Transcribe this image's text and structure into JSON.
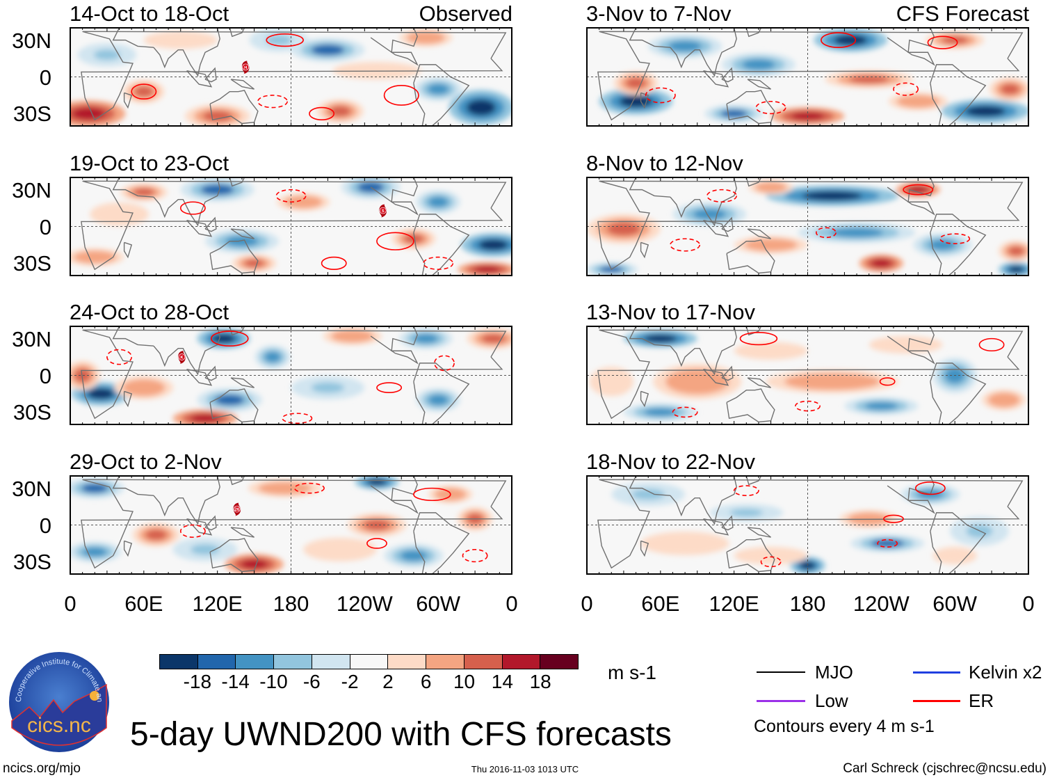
{
  "title": "5-day UWND200 with CFS forecasts",
  "footer": {
    "url": "ncics.org/mjo",
    "timestamp": "Thu 2016-11-03 1013 UTC",
    "author": "Carl Schreck (cjschrec@ncsu.edu)"
  },
  "logo": {
    "ring_text": "Cooperative Institute for Climate and Satellites",
    "name": "cics.nc"
  },
  "colorbar": {
    "unit": "m s-1",
    "ticks": [
      "-18",
      "-14",
      "-10",
      "-6",
      "-2",
      "2",
      "6",
      "10",
      "14",
      "18"
    ],
    "colors": [
      "#0b3669",
      "#2166ac",
      "#4393c3",
      "#92c5de",
      "#d1e5f0",
      "#f7f7f7",
      "#fddbc7",
      "#f4a582",
      "#d6604d",
      "#b2182b",
      "#67001f"
    ]
  },
  "legend": {
    "items": [
      {
        "label": "MJO",
        "color": "#000000"
      },
      {
        "label": "Kelvin x2",
        "color": "#1f3fe0"
      },
      {
        "label": "Low",
        "color": "#9b30e8"
      },
      {
        "label": "ER",
        "color": "#ff0000"
      }
    ],
    "note": "Contours every 4 m s-1"
  },
  "axes": {
    "lat_labels": [
      "30N",
      "0",
      "30S"
    ],
    "lon_labels": [
      "0",
      "60E",
      "120E",
      "180",
      "120W",
      "60W",
      "0"
    ]
  },
  "chart_data": {
    "type": "heatmap",
    "variable": "200-hPa zonal wind anomaly (m s-1), 5-day means",
    "x_range_deg_east": [
      0,
      360
    ],
    "y_range_deg_lat": [
      -40,
      40
    ],
    "panels": [
      {
        "title": "14-Oct to 18-Oct",
        "label": "Observed",
        "col": 0,
        "row": 0,
        "storm": {
          "label": "H",
          "lon": 143,
          "lat": 8
        },
        "anomalies": [
          [
            15,
            -30,
            18,
            25,
            9
          ],
          [
            60,
            -12,
            14,
            14,
            8
          ],
          [
            120,
            -32,
            14,
            22,
            8
          ],
          [
            220,
            -28,
            14,
            16,
            8
          ],
          [
            335,
            -25,
            -18,
            22,
            12
          ],
          [
            210,
            22,
            -14,
            25,
            8
          ],
          [
            290,
            32,
            10,
            18,
            6
          ],
          [
            30,
            18,
            -6,
            20,
            8
          ],
          [
            300,
            -10,
            -10,
            16,
            8
          ],
          [
            170,
            30,
            -6,
            20,
            8
          ],
          [
            90,
            30,
            6,
            25,
            6
          ],
          [
            250,
            5,
            6,
            30,
            6
          ]
        ],
        "er_contours": [
          [
            175,
            30,
            15,
            5,
            0
          ],
          [
            165,
            -20,
            12,
            5,
            1
          ],
          [
            270,
            -15,
            14,
            8,
            0
          ],
          [
            60,
            -12,
            10,
            6,
            0
          ],
          [
            205,
            -30,
            10,
            5,
            0
          ]
        ]
      },
      {
        "title": "19-Oct to 23-Oct",
        "label": "",
        "col": 0,
        "row": 1,
        "storm": {
          "label": "S",
          "lon": 255,
          "lat": 13
        },
        "anomalies": [
          [
            60,
            28,
            14,
            16,
            6
          ],
          [
            120,
            30,
            -14,
            25,
            8
          ],
          [
            245,
            32,
            -14,
            20,
            8
          ],
          [
            280,
            -10,
            14,
            15,
            7
          ],
          [
            345,
            -15,
            -18,
            22,
            8
          ],
          [
            340,
            -35,
            18,
            20,
            5
          ],
          [
            140,
            -12,
            -10,
            25,
            8
          ],
          [
            150,
            -30,
            14,
            15,
            6
          ],
          [
            20,
            -25,
            10,
            20,
            6
          ],
          [
            190,
            20,
            10,
            18,
            6
          ],
          [
            300,
            20,
            -10,
            15,
            8
          ],
          [
            40,
            10,
            6,
            20,
            8
          ]
        ],
        "er_contours": [
          [
            180,
            25,
            12,
            5,
            1
          ],
          [
            265,
            -12,
            15,
            7,
            0
          ],
          [
            300,
            -30,
            12,
            5,
            1
          ],
          [
            100,
            15,
            10,
            5,
            0
          ],
          [
            215,
            -30,
            10,
            5,
            0
          ]
        ]
      },
      {
        "title": "24-Oct to 28-Oct",
        "label": "",
        "col": 0,
        "row": 2,
        "storm": {
          "label": "K",
          "lon": 91,
          "lat": 15
        },
        "anomalies": [
          [
            125,
            30,
            -18,
            18,
            7
          ],
          [
            25,
            -15,
            -18,
            20,
            8
          ],
          [
            130,
            -20,
            -14,
            22,
            8
          ],
          [
            110,
            -35,
            18,
            22,
            6
          ],
          [
            10,
            0,
            14,
            12,
            10
          ],
          [
            345,
            30,
            14,
            18,
            7
          ],
          [
            230,
            32,
            10,
            20,
            6
          ],
          [
            290,
            30,
            -10,
            18,
            7
          ],
          [
            300,
            -20,
            -10,
            15,
            8
          ],
          [
            210,
            -10,
            -6,
            25,
            8
          ],
          [
            165,
            15,
            -10,
            12,
            8
          ],
          [
            60,
            -10,
            10,
            20,
            8
          ]
        ],
        "er_contours": [
          [
            130,
            30,
            15,
            6,
            0
          ],
          [
            260,
            -10,
            10,
            4,
            0
          ],
          [
            185,
            -35,
            12,
            4,
            1
          ],
          [
            305,
            10,
            8,
            6,
            1
          ],
          [
            40,
            15,
            10,
            6,
            1
          ]
        ]
      },
      {
        "title": "29-Oct to 2-Nov",
        "label": "",
        "col": 0,
        "row": 3,
        "storm": {
          "label": "26",
          "lon": 136,
          "lat": 13
        },
        "anomalies": [
          [
            150,
            -32,
            18,
            20,
            7
          ],
          [
            70,
            -8,
            14,
            16,
            8
          ],
          [
            250,
            0,
            14,
            20,
            8
          ],
          [
            20,
            30,
            -14,
            20,
            7
          ],
          [
            250,
            35,
            -18,
            15,
            5
          ],
          [
            175,
            30,
            10,
            25,
            6
          ],
          [
            330,
            5,
            14,
            12,
            8
          ],
          [
            280,
            -25,
            -10,
            20,
            8
          ],
          [
            20,
            -22,
            -10,
            18,
            7
          ],
          [
            310,
            25,
            10,
            15,
            6
          ],
          [
            110,
            -20,
            -6,
            22,
            8
          ],
          [
            220,
            -20,
            6,
            25,
            8
          ]
        ],
        "er_contours": [
          [
            195,
            30,
            12,
            4,
            1
          ],
          [
            295,
            25,
            15,
            5,
            0
          ],
          [
            250,
            -15,
            8,
            4,
            0
          ],
          [
            100,
            -5,
            10,
            5,
            1
          ],
          [
            330,
            -25,
            10,
            5,
            1
          ]
        ]
      },
      {
        "title": "3-Nov to 7-Nov",
        "label": "CFS Forecast",
        "col": 1,
        "row": 0,
        "storm": null,
        "anomalies": [
          [
            215,
            30,
            -18,
            25,
            8
          ],
          [
            40,
            -20,
            -18,
            25,
            9
          ],
          [
            120,
            -30,
            -14,
            20,
            6
          ],
          [
            325,
            -28,
            -18,
            30,
            8
          ],
          [
            40,
            -5,
            14,
            15,
            8
          ],
          [
            180,
            -32,
            18,
            25,
            6
          ],
          [
            230,
            -2,
            14,
            30,
            6
          ],
          [
            345,
            -10,
            14,
            14,
            8
          ],
          [
            300,
            30,
            14,
            20,
            6
          ],
          [
            80,
            25,
            -10,
            25,
            8
          ],
          [
            140,
            10,
            -10,
            25,
            8
          ],
          [
            270,
            -20,
            10,
            20,
            6
          ]
        ],
        "er_contours": [
          [
            205,
            30,
            14,
            6,
            0
          ],
          [
            290,
            28,
            12,
            5,
            0
          ],
          [
            60,
            -15,
            12,
            6,
            1
          ],
          [
            150,
            -25,
            12,
            5,
            1
          ],
          [
            260,
            -10,
            10,
            5,
            1
          ]
        ]
      },
      {
        "title": "8-Nov to 12-Nov",
        "label": "",
        "col": 1,
        "row": 1,
        "storm": null,
        "anomalies": [
          [
            200,
            25,
            -18,
            45,
            7
          ],
          [
            270,
            30,
            18,
            15,
            5
          ],
          [
            30,
            -2,
            14,
            25,
            10
          ],
          [
            220,
            -5,
            -10,
            40,
            7
          ],
          [
            150,
            -15,
            10,
            25,
            6
          ],
          [
            240,
            -30,
            18,
            15,
            6
          ],
          [
            350,
            -20,
            14,
            12,
            7
          ],
          [
            350,
            -35,
            -18,
            12,
            5
          ],
          [
            20,
            -35,
            -14,
            18,
            5
          ],
          [
            100,
            10,
            -10,
            25,
            8
          ],
          [
            150,
            32,
            10,
            15,
            5
          ],
          [
            290,
            -15,
            -10,
            20,
            8
          ]
        ],
        "er_contours": [
          [
            110,
            25,
            12,
            5,
            1
          ],
          [
            80,
            -15,
            12,
            5,
            1
          ],
          [
            195,
            -5,
            8,
            4,
            1
          ],
          [
            270,
            30,
            12,
            4,
            0
          ],
          [
            300,
            -10,
            12,
            4,
            1
          ]
        ]
      },
      {
        "title": "13-Nov to 17-Nov",
        "label": "",
        "col": 1,
        "row": 2,
        "storm": null,
        "anomalies": [
          [
            60,
            30,
            -18,
            25,
            6
          ],
          [
            90,
            -5,
            10,
            30,
            12
          ],
          [
            200,
            -5,
            10,
            45,
            8
          ],
          [
            300,
            0,
            -10,
            15,
            12
          ],
          [
            240,
            -25,
            -10,
            25,
            6
          ],
          [
            60,
            -30,
            -10,
            25,
            6
          ],
          [
            340,
            -20,
            10,
            15,
            7
          ],
          [
            150,
            20,
            6,
            25,
            6
          ],
          [
            260,
            25,
            6,
            25,
            6
          ],
          [
            20,
            -5,
            6,
            15,
            10
          ]
        ],
        "er_contours": [
          [
            140,
            30,
            15,
            5,
            0
          ],
          [
            330,
            25,
            10,
            5,
            0
          ],
          [
            245,
            -5,
            6,
            3,
            0
          ],
          [
            80,
            -30,
            10,
            4,
            1
          ],
          [
            180,
            -25,
            10,
            4,
            1
          ]
        ]
      },
      {
        "title": "18-Nov to 22-Nov",
        "label": "",
        "col": 1,
        "row": 3,
        "storm": null,
        "anomalies": [
          [
            180,
            -33,
            -18,
            12,
            6
          ],
          [
            245,
            -15,
            -14,
            25,
            6
          ],
          [
            230,
            5,
            10,
            20,
            6
          ],
          [
            280,
            25,
            -10,
            20,
            7
          ],
          [
            80,
            -15,
            6,
            30,
            8
          ],
          [
            150,
            -25,
            6,
            25,
            6
          ],
          [
            50,
            25,
            -6,
            25,
            8
          ],
          [
            320,
            -5,
            -6,
            20,
            10
          ],
          [
            130,
            10,
            -6,
            25,
            6
          ],
          [
            300,
            -25,
            6,
            15,
            6
          ]
        ],
        "er_contours": [
          [
            250,
            5,
            8,
            3,
            0
          ],
          [
            245,
            -15,
            8,
            3,
            1
          ],
          [
            130,
            28,
            10,
            4,
            1
          ],
          [
            280,
            30,
            12,
            5,
            0
          ],
          [
            150,
            -30,
            8,
            4,
            1
          ]
        ]
      }
    ]
  }
}
